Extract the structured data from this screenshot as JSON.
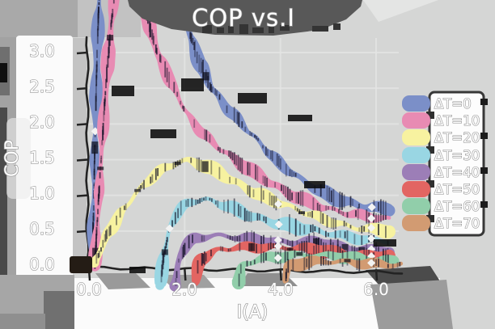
{
  "title": "COP vs.I",
  "axes": {
    "xlabel": "I(A)",
    "ylabel": "COP",
    "y_ticks": [
      "3.0",
      "2.5",
      "2.0",
      "1.5",
      "1.0",
      "0.5",
      "0.0"
    ],
    "x_ticks": [
      "0.0",
      "2.0",
      "4.0",
      "6.0"
    ]
  },
  "theme": {
    "background": "#d5d6d5",
    "label_chip": "#fbfbfb",
    "text_fill": "#ffffff",
    "text_outline": "#979797",
    "spine_color": "#232323",
    "shadow_dark": "#585858",
    "shadow_mid": "#9c9c9c",
    "legend_box_fill": "#fdfdfd",
    "legend_box_border": "#383838"
  },
  "chart_data": {
    "type": "line",
    "title": "COP vs.I",
    "xlabel": "I(A)",
    "ylabel": "COP",
    "xlim": [
      0,
      6.7
    ],
    "ylim": [
      0,
      3.2
    ],
    "x_tick_values": [
      0,
      2,
      4,
      6
    ],
    "y_tick_values": [
      0,
      0.5,
      1,
      1.5,
      2,
      2.5,
      3
    ],
    "grid": true,
    "legend_position": "right",
    "style": "xkcd-sketch",
    "series": [
      {
        "name": "ΔT=0",
        "color": "#7b8fc8",
        "marker_I": [
          0.13,
          5.9
        ],
        "points": [
          [
            0.07,
            0
          ],
          [
            0.1,
            0.9
          ],
          [
            0.13,
            1.9
          ],
          [
            0.17,
            3.0
          ],
          [
            0.22,
            3.9
          ],
          [
            0.32,
            4.8
          ],
          [
            0.6,
            5.5
          ],
          [
            1.0,
            5.6
          ],
          [
            1.4,
            5.1
          ],
          [
            1.7,
            4.4
          ],
          [
            1.95,
            3.8
          ],
          [
            2.1,
            3.3
          ],
          [
            2.3,
            2.85
          ],
          [
            2.55,
            2.5
          ],
          [
            2.85,
            2.25
          ],
          [
            3.1,
            2.08
          ],
          [
            3.5,
            1.8
          ],
          [
            4.0,
            1.42
          ],
          [
            4.4,
            1.22
          ],
          [
            4.8,
            1.06
          ],
          [
            5.2,
            0.96
          ],
          [
            5.6,
            0.88
          ],
          [
            6.0,
            0.83
          ],
          [
            6.3,
            0.8
          ]
        ]
      },
      {
        "name": "ΔT=10",
        "color": "#e88bb3",
        "marker_I": [
          5.9
        ],
        "points": [
          [
            0.12,
            0
          ],
          [
            0.18,
            0.7
          ],
          [
            0.26,
            1.6
          ],
          [
            0.35,
            2.5
          ],
          [
            0.45,
            3.3
          ],
          [
            0.55,
            3.95
          ],
          [
            0.7,
            4.4
          ],
          [
            0.9,
            4.45
          ],
          [
            1.05,
            4.1
          ],
          [
            1.2,
            3.6
          ],
          [
            1.35,
            3.15
          ],
          [
            1.55,
            2.8
          ],
          [
            1.8,
            2.45
          ],
          [
            2.05,
            2.15
          ],
          [
            2.35,
            1.9
          ],
          [
            2.7,
            1.68
          ],
          [
            3.0,
            1.52
          ],
          [
            3.4,
            1.32
          ],
          [
            3.8,
            1.16
          ],
          [
            4.2,
            1.03
          ],
          [
            4.6,
            0.92
          ],
          [
            5.0,
            0.82
          ],
          [
            5.4,
            0.74
          ],
          [
            5.8,
            0.69
          ],
          [
            6.3,
            0.65
          ]
        ]
      },
      {
        "name": "ΔT=20",
        "color": "#f7f2a0",
        "marker_I": [
          3.95,
          5.9
        ],
        "points": [
          [
            0.1,
            0
          ],
          [
            0.35,
            0.4
          ],
          [
            0.65,
            0.75
          ],
          [
            0.95,
            1.02
          ],
          [
            1.25,
            1.22
          ],
          [
            1.55,
            1.36
          ],
          [
            1.85,
            1.45
          ],
          [
            2.05,
            1.47
          ],
          [
            2.3,
            1.44
          ],
          [
            2.6,
            1.36
          ],
          [
            2.9,
            1.26
          ],
          [
            3.2,
            1.15
          ],
          [
            3.6,
            1.0
          ],
          [
            4.0,
            0.88
          ],
          [
            4.4,
            0.77
          ],
          [
            4.8,
            0.68
          ],
          [
            5.2,
            0.61
          ],
          [
            5.6,
            0.56
          ],
          [
            6.0,
            0.53
          ],
          [
            6.3,
            0.51
          ]
        ]
      },
      {
        "name": "ΔT=30",
        "color": "#99d6e3",
        "marker_I": [
          1.68,
          3.95,
          5.9
        ],
        "points": [
          [
            1.48,
            -0.3
          ],
          [
            1.53,
            0.0
          ],
          [
            1.6,
            0.3
          ],
          [
            1.68,
            0.52
          ],
          [
            1.8,
            0.7
          ],
          [
            1.95,
            0.82
          ],
          [
            2.15,
            0.9
          ],
          [
            2.4,
            0.93
          ],
          [
            2.65,
            0.9
          ],
          [
            2.95,
            0.84
          ],
          [
            3.3,
            0.75
          ],
          [
            3.7,
            0.66
          ],
          [
            4.1,
            0.58
          ],
          [
            4.5,
            0.52
          ],
          [
            4.9,
            0.47
          ],
          [
            5.3,
            0.43
          ],
          [
            5.7,
            0.4
          ],
          [
            6.1,
            0.38
          ],
          [
            6.3,
            0.37
          ]
        ]
      },
      {
        "name": "ΔT=40",
        "color": "#9c7eb7",
        "marker_I": [
          3.95,
          5.9
        ],
        "points": [
          [
            1.8,
            -0.28
          ],
          [
            1.85,
            0.0
          ],
          [
            1.93,
            0.18
          ],
          [
            2.05,
            0.3
          ],
          [
            2.2,
            0.37
          ],
          [
            2.4,
            0.41
          ],
          [
            2.65,
            0.43
          ],
          [
            2.95,
            0.43
          ],
          [
            3.3,
            0.41
          ],
          [
            3.7,
            0.38
          ],
          [
            4.1,
            0.35
          ],
          [
            4.5,
            0.32
          ],
          [
            4.9,
            0.29
          ],
          [
            5.3,
            0.26
          ],
          [
            5.7,
            0.24
          ],
          [
            6.1,
            0.23
          ],
          [
            6.3,
            0.22
          ]
        ]
      },
      {
        "name": "ΔT=50",
        "color": "#e26562",
        "marker_I": [
          3.95,
          5.9
        ],
        "points": [
          [
            2.22,
            -0.25
          ],
          [
            2.28,
            0.0
          ],
          [
            2.38,
            0.12
          ],
          [
            2.55,
            0.2
          ],
          [
            2.75,
            0.25
          ],
          [
            3.0,
            0.28
          ],
          [
            3.3,
            0.29
          ],
          [
            3.7,
            0.28
          ],
          [
            4.1,
            0.26
          ],
          [
            4.5,
            0.24
          ],
          [
            4.9,
            0.21
          ],
          [
            5.3,
            0.19
          ],
          [
            5.7,
            0.17
          ],
          [
            6.1,
            0.15
          ],
          [
            6.3,
            0.15
          ]
        ]
      },
      {
        "name": "ΔT=60",
        "color": "#91ceaa",
        "marker_I": [
          3.95,
          5.9
        ],
        "points": [
          [
            3.12,
            -0.22
          ],
          [
            3.18,
            0.0
          ],
          [
            3.3,
            0.07
          ],
          [
            3.5,
            0.11
          ],
          [
            3.8,
            0.14
          ],
          [
            4.2,
            0.15
          ],
          [
            4.6,
            0.15
          ],
          [
            5.0,
            0.14
          ],
          [
            5.4,
            0.13
          ],
          [
            5.8,
            0.12
          ],
          [
            6.2,
            0.11
          ],
          [
            6.4,
            0.1
          ]
        ]
      },
      {
        "name": "ΔT=70",
        "color": "#d29b72",
        "marker_I": [
          5.9
        ],
        "points": [
          [
            4.1,
            -0.18
          ],
          [
            4.15,
            0.0
          ],
          [
            4.3,
            0.03
          ],
          [
            4.6,
            0.05
          ],
          [
            5.0,
            0.06
          ],
          [
            5.4,
            0.06
          ],
          [
            5.8,
            0.05
          ],
          [
            6.2,
            0.05
          ],
          [
            6.55,
            0.04
          ]
        ]
      }
    ]
  }
}
